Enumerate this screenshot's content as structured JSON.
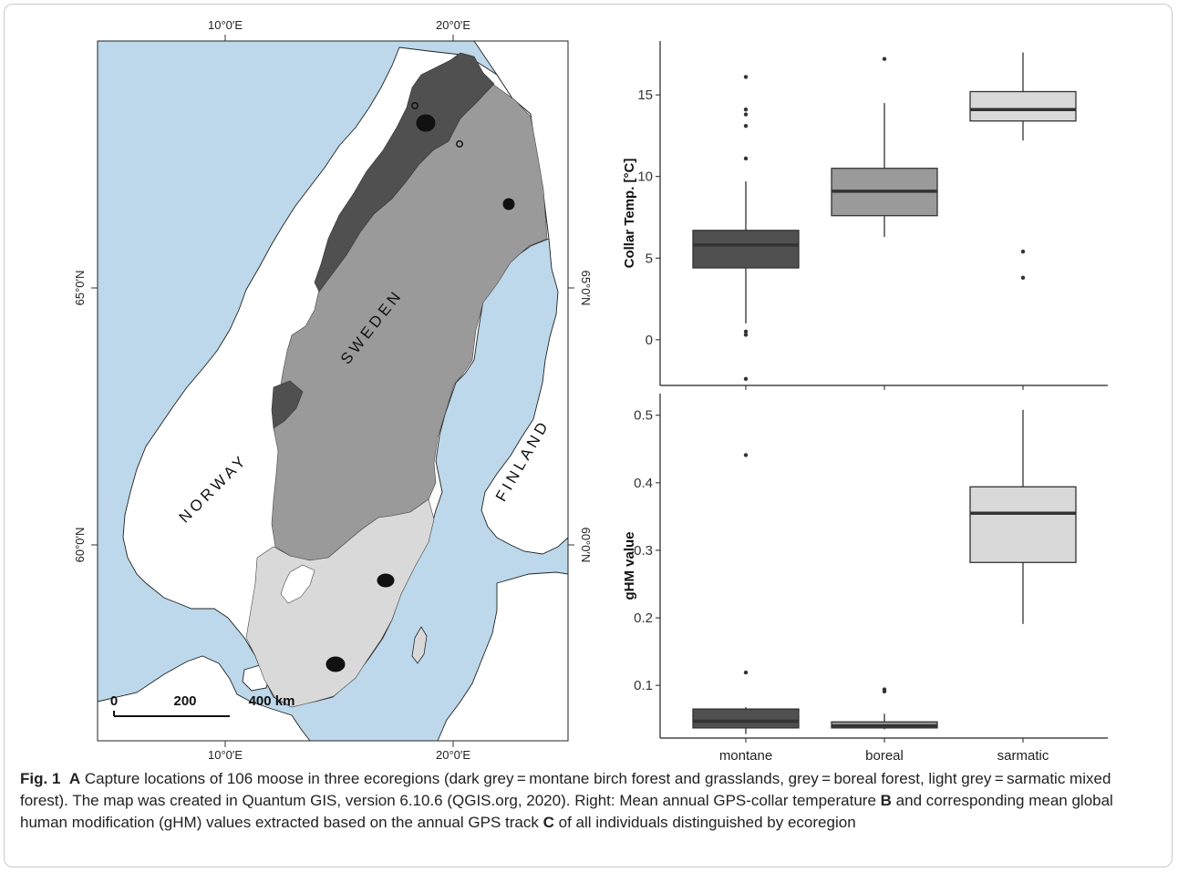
{
  "map": {
    "lon_top": [
      "10°0′E",
      "20°0′E"
    ],
    "lon_bottom": [
      "10°0′E",
      "20°0′E"
    ],
    "lat_left": [
      "65°0′N",
      "60°0′N"
    ],
    "lat_right": [
      "65°0′N",
      "60°0′N"
    ],
    "countries": {
      "sweden": "SWEDEN",
      "norway": "NORWAY",
      "finland": "FINLAND"
    },
    "scalebar": [
      "0",
      "200",
      "400 km"
    ]
  },
  "chart_data": [
    {
      "type": "box",
      "panel": "B",
      "categories": [
        "montane",
        "boreal",
        "sarmatic"
      ],
      "ylabel": "Collar Temp. [°C]",
      "yticks": [
        0,
        5,
        10,
        15
      ],
      "ylim": [
        -2.8,
        18.3
      ],
      "boxes": [
        {
          "category": "montane",
          "color": "#505050",
          "whisker_low": 1.0,
          "q1": 4.4,
          "median": 5.8,
          "q3": 6.7,
          "whisker_high": 9.7,
          "outliers": [
            16.1,
            14.1,
            13.8,
            13.1,
            11.1,
            0.5,
            0.3,
            -2.4
          ]
        },
        {
          "category": "boreal",
          "color": "#9a9a9a",
          "whisker_low": 6.3,
          "q1": 7.6,
          "median": 9.1,
          "q3": 10.5,
          "whisker_high": 14.5,
          "outliers": [
            17.2
          ]
        },
        {
          "category": "sarmatic",
          "color": "#d9d9d9",
          "whisker_low": 12.2,
          "q1": 13.4,
          "median": 14.1,
          "q3": 15.2,
          "whisker_high": 17.6,
          "outliers": [
            5.4,
            3.8
          ]
        }
      ]
    },
    {
      "type": "box",
      "panel": "C",
      "categories": [
        "montane",
        "boreal",
        "sarmatic"
      ],
      "ylabel": "gHM value",
      "yticks": [
        0.1,
        0.2,
        0.3,
        0.4,
        0.5
      ],
      "ylim": [
        0.022,
        0.532
      ],
      "boxes": [
        {
          "category": "montane",
          "color": "#505050",
          "whisker_low": 0.028,
          "q1": 0.037,
          "median": 0.047,
          "q3": 0.065,
          "whisker_high": 0.068,
          "outliers": [
            0.441,
            0.119
          ]
        },
        {
          "category": "boreal",
          "color": "#9a9a9a",
          "whisker_low": 0.035,
          "q1": 0.037,
          "median": 0.04,
          "q3": 0.046,
          "whisker_high": 0.058,
          "outliers": [
            0.094,
            0.091
          ]
        },
        {
          "category": "sarmatic",
          "color": "#d9d9d9",
          "whisker_low": 0.191,
          "q1": 0.282,
          "median": 0.355,
          "q3": 0.394,
          "whisker_high": 0.508,
          "outliers": []
        }
      ]
    }
  ],
  "caption": {
    "label": "Fig. 1",
    "panel_a": "A",
    "text_1": "Capture locations of 106 moose in three ecoregions (dark grey = montane birch forest and grasslands, grey = boreal forest, light grey = sarmatic mixed forest). The map was created in Quantum GIS, version 6.10.6 (QGIS.org, 2020). Right: Mean annual GPS-collar temperature",
    "panel_b": "B",
    "text_2": "and corresponding mean global human modification (gHM) values extracted based on the annual GPS track",
    "panel_c": "C",
    "text_3": "of all individuals distinguished by ecoregion"
  },
  "colors": {
    "sea": "#bcd8ea",
    "montane": "#505050",
    "boreal": "#9a9a9a",
    "sarmatic": "#d9d9d9",
    "land": "#ffffff"
  }
}
